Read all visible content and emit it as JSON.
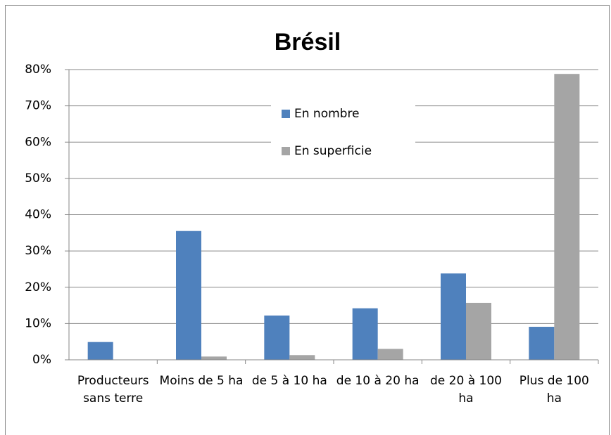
{
  "chart_data": {
    "type": "bar",
    "title": "Brésil",
    "categories": [
      "Producteurs sans terre",
      "Moins de 5 ha",
      "de 5 à 10 ha",
      "de 10 à 20 ha",
      "de 20 à 100 ha",
      "Plus de 100 ha"
    ],
    "series": [
      {
        "name": "En nombre",
        "color": "#4f81bd",
        "values": [
          4.9,
          35.5,
          12.2,
          14.2,
          23.8,
          9.1
        ]
      },
      {
        "name": "En superficie",
        "color": "#a5a5a5",
        "values": [
          0,
          0.9,
          1.3,
          3.0,
          15.7,
          78.8
        ]
      }
    ],
    "ylim": [
      0,
      80
    ],
    "yticks": [
      {
        "value": 0,
        "label": "0%"
      },
      {
        "value": 10,
        "label": "10%"
      },
      {
        "value": 20,
        "label": "20%"
      },
      {
        "value": 30,
        "label": "30%"
      },
      {
        "value": 40,
        "label": "40%"
      },
      {
        "value": 50,
        "label": "50%"
      },
      {
        "value": 60,
        "label": "60%"
      },
      {
        "value": 70,
        "label": "70%"
      },
      {
        "value": 80,
        "label": "80%"
      }
    ],
    "grid": true
  }
}
